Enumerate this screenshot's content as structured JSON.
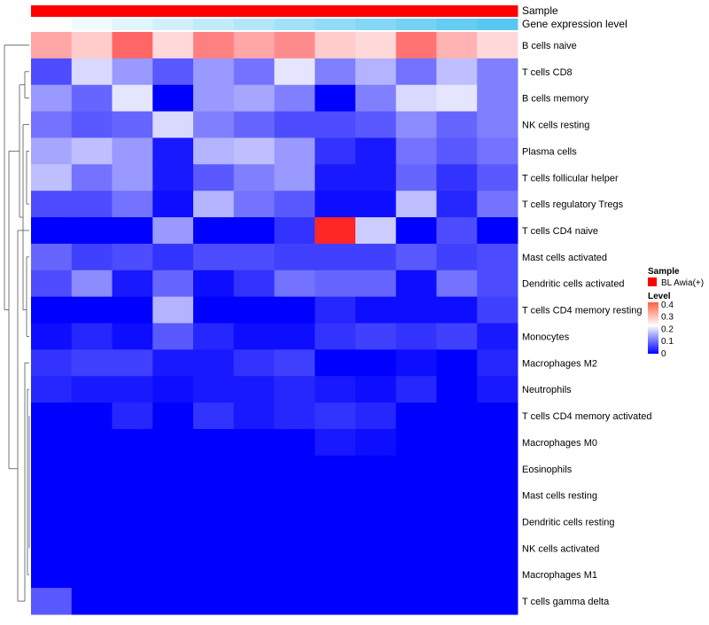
{
  "chart_data": {
    "type": "heatmap",
    "annotations": [
      {
        "name": "Sample"
      },
      {
        "name": "Gene expression level"
      }
    ],
    "rows": [
      "B cells naive",
      "T cells CD8",
      "B cells memory",
      "NK cells resting",
      "Plasma cells",
      "T cells follicular helper",
      "T cells regulatory  Tregs",
      "T cells CD4 naive",
      "Mast cells activated",
      "Dendritic cells activated",
      "T cells CD4 memory resting",
      "Monocytes",
      "Macrophages M2",
      "Neutrophils",
      "T cells CD4 memory activated",
      "Macrophages M0",
      "Eosinophils",
      "Mast cells resting",
      "Dendritic cells resting",
      "NK cells activated",
      "Macrophages M1",
      "T cells gamma delta"
    ],
    "values": [
      [
        0.27,
        0.24,
        0.32,
        0.23,
        0.3,
        0.27,
        0.29,
        0.24,
        0.23,
        0.31,
        0.26,
        0.23
      ],
      [
        0.06,
        0.17,
        0.12,
        0.07,
        0.12,
        0.09,
        0.18,
        0.1,
        0.14,
        0.09,
        0.15,
        0.1
      ],
      [
        0.12,
        0.08,
        0.18,
        0.0,
        0.12,
        0.13,
        0.1,
        0.0,
        0.1,
        0.17,
        0.18,
        0.1
      ],
      [
        0.09,
        0.07,
        0.08,
        0.17,
        0.1,
        0.08,
        0.06,
        0.06,
        0.07,
        0.11,
        0.08,
        0.1
      ],
      [
        0.13,
        0.15,
        0.12,
        0.02,
        0.14,
        0.15,
        0.12,
        0.04,
        0.02,
        0.09,
        0.07,
        0.09
      ],
      [
        0.15,
        0.09,
        0.12,
        0.02,
        0.07,
        0.1,
        0.12,
        0.02,
        0.02,
        0.08,
        0.04,
        0.07
      ],
      [
        0.06,
        0.06,
        0.09,
        0.01,
        0.14,
        0.09,
        0.07,
        0.01,
        0.01,
        0.15,
        0.03,
        0.09
      ],
      [
        0.0,
        0.0,
        0.0,
        0.12,
        0.0,
        0.0,
        0.04,
        0.37,
        0.16,
        0.0,
        0.06,
        0.0
      ],
      [
        0.08,
        0.05,
        0.06,
        0.04,
        0.06,
        0.06,
        0.05,
        0.05,
        0.05,
        0.07,
        0.05,
        0.06
      ],
      [
        0.06,
        0.11,
        0.02,
        0.08,
        0.01,
        0.04,
        0.09,
        0.08,
        0.08,
        0.01,
        0.09,
        0.06
      ],
      [
        0.0,
        0.0,
        0.0,
        0.14,
        0.0,
        0.0,
        0.0,
        0.03,
        0.01,
        0.01,
        0.01,
        0.05
      ],
      [
        0.01,
        0.03,
        0.01,
        0.07,
        0.03,
        0.01,
        0.01,
        0.04,
        0.05,
        0.04,
        0.05,
        0.02
      ],
      [
        0.04,
        0.05,
        0.05,
        0.02,
        0.02,
        0.04,
        0.05,
        0.0,
        0.0,
        0.01,
        0.0,
        0.03
      ],
      [
        0.03,
        0.02,
        0.02,
        0.01,
        0.02,
        0.02,
        0.03,
        0.02,
        0.01,
        0.03,
        0.0,
        0.02
      ],
      [
        0.0,
        0.0,
        0.03,
        0.0,
        0.04,
        0.02,
        0.03,
        0.04,
        0.03,
        0.0,
        0.0,
        0.0
      ],
      [
        0.0,
        0.0,
        0.0,
        0.0,
        0.0,
        0.0,
        0.0,
        0.02,
        0.01,
        0.0,
        0.0,
        0.0
      ],
      [
        0.0,
        0.0,
        0.0,
        0.0,
        0.0,
        0.0,
        0.0,
        0.0,
        0.0,
        0.0,
        0.0,
        0.0
      ],
      [
        0.0,
        0.0,
        0.0,
        0.0,
        0.0,
        0.0,
        0.0,
        0.0,
        0.0,
        0.0,
        0.0,
        0.0
      ],
      [
        0.0,
        0.0,
        0.0,
        0.0,
        0.0,
        0.0,
        0.0,
        0.0,
        0.0,
        0.0,
        0.0,
        0.0
      ],
      [
        0.0,
        0.0,
        0.0,
        0.0,
        0.0,
        0.0,
        0.0,
        0.0,
        0.0,
        0.0,
        0.0,
        0.0
      ],
      [
        0.0,
        0.0,
        0.0,
        0.0,
        0.0,
        0.0,
        0.0,
        0.0,
        0.0,
        0.0,
        0.0,
        0.0
      ],
      [
        0.07,
        0.0,
        0.0,
        0.0,
        0.0,
        0.0,
        0.0,
        0.0,
        0.0,
        0.0,
        0.0,
        0.0
      ]
    ],
    "sample_annotation": {
      "values": [
        "BL Awia(+)",
        "BL Awia(+)",
        "BL Awia(+)",
        "BL Awia(+)",
        "BL Awia(+)",
        "BL Awia(+)",
        "BL Awia(+)",
        "BL Awia(+)",
        "BL Awia(+)",
        "BL Awia(+)",
        "BL Awia(+)",
        "BL Awia(+)"
      ],
      "color": "#ff0000"
    },
    "expression_annotation": {
      "values": [
        0.0,
        0.09,
        0.18,
        0.27,
        0.36,
        0.45,
        0.55,
        0.64,
        0.73,
        0.82,
        0.91,
        1.0
      ],
      "color_low": "#ffffff",
      "color_high": "#56c8f2"
    },
    "legend": {
      "sample_title": "Sample",
      "sample_entries": [
        {
          "label": "BL Awia(+)",
          "color": "#ff0000"
        }
      ],
      "level_title": "Level",
      "level_ticks": [
        "0.4",
        "0.3",
        "0.2",
        "0.1",
        "0"
      ],
      "level_tick_values": [
        0.4,
        0.3,
        0.2,
        0.1,
        0.0
      ],
      "placement": "right"
    },
    "color_scale": {
      "low": "#0000ff",
      "mid": "#ffffff",
      "high": "#ff0000",
      "min": 0.0,
      "mid_value": 0.2,
      "max": 0.4
    },
    "row_dendrogram": true
  }
}
